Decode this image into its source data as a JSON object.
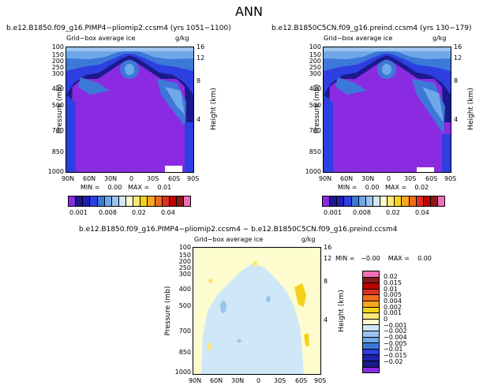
{
  "page_title": "ANN",
  "colors": {
    "purple": "#8a2be2",
    "navy": "#1a1a8c",
    "blue": "#2d3fe0",
    "mid_blue": "#3c78d8",
    "sky": "#6fa8e8",
    "pale_blue": "#cfe7f7",
    "pale_yellow": "#fdfccf",
    "yellow": "#f5d21a"
  },
  "panel_a": {
    "title": "b.e12.B1850.f09_g16.PIMP4−pliomip2.ccsm4 (yrs 1051−1100)",
    "subtitle": "Grid−box average ice",
    "units": "g/kg",
    "stats": "MIN =    0.00   MAX =    0.01"
  },
  "panel_b": {
    "title": "b.e12.B1850C5CN.f09_g16.preind.ccsm4 (yrs 130−179)",
    "subtitle": "Grid−box average ice",
    "units": "g/kg",
    "stats": "MIN =    0.00   MAX =    0.02"
  },
  "panel_c": {
    "title": "b.e12.B1850.f09_g16.PIMP4−pliomip2.ccsm4 − b.e12.B1850C5CN.f09_g16.preind.ccsm4",
    "subtitle": "Grid−box average ice",
    "units": "g/kg",
    "stats": "MIN =   −0.00    MAX =    0.00"
  },
  "chart_data": [
    {
      "type": "heatmap",
      "title": "b.e12.B1850.f09_g16.PIMP4−pliomip2.ccsm4 (yrs 1051−1100)",
      "xlabel": "",
      "ylabel": "Pressure (mb)",
      "y2label": "Height (km)",
      "x_ticks": [
        "90N",
        "60N",
        "30N",
        "0",
        "30S",
        "60S",
        "90S"
      ],
      "y_ticks": [
        "100",
        "150",
        "200",
        "250",
        "300",
        "400",
        "500",
        "700",
        "850",
        "1000"
      ],
      "y2_ticks": [
        "16",
        "12",
        "8",
        "4"
      ],
      "colorbar_labels": [
        "0.001",
        "0.008",
        "0.02",
        "0.04"
      ],
      "min": 0.0,
      "max": 0.01
    },
    {
      "type": "heatmap",
      "title": "b.e12.B1850C5CN.f09_g16.preind.ccsm4 (yrs 130−179)",
      "xlabel": "",
      "ylabel": "Pressure (mb)",
      "y2label": "Height (km)",
      "x_ticks": [
        "90N",
        "60N",
        "30N",
        "0",
        "30S",
        "60S",
        "90S"
      ],
      "y_ticks": [
        "100",
        "150",
        "200",
        "250",
        "300",
        "400",
        "500",
        "700",
        "850",
        "1000"
      ],
      "y2_ticks": [
        "16",
        "12",
        "8",
        "4"
      ],
      "colorbar_labels": [
        "0.001",
        "0.008",
        "0.02",
        "0.04"
      ],
      "min": 0.0,
      "max": 0.02
    },
    {
      "type": "heatmap",
      "title": "b.e12.B1850.f09_g16.PIMP4−pliomip2.ccsm4 − b.e12.B1850C5CN.f09_g16.preind.ccsm4",
      "xlabel": "",
      "ylabel": "Pressure (mb)",
      "y2label": "Height (km)",
      "x_ticks": [
        "90N",
        "60N",
        "30N",
        "0",
        "30S",
        "60S",
        "90S"
      ],
      "y_ticks": [
        "100",
        "150",
        "200",
        "250",
        "300",
        "400",
        "500",
        "700",
        "850",
        "1000"
      ],
      "y2_ticks": [
        "16",
        "12",
        "8",
        "4"
      ],
      "colorbar_labels": [
        "0.02",
        "0.015",
        "0.01",
        "0.005",
        "0.004",
        "0.002",
        "0.001",
        "0",
        "−0.001",
        "−0.002",
        "−0.004",
        "−0.005",
        "−0.01",
        "−0.015",
        "−0.02"
      ],
      "min": -0.0,
      "max": 0.0
    }
  ]
}
